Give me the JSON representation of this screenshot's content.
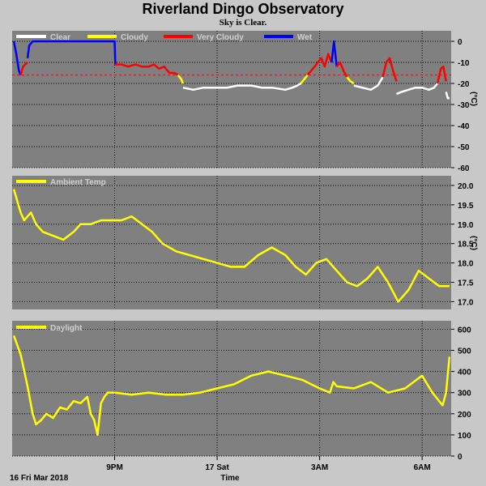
{
  "header": {
    "title": "Riverland Dingo Observatory",
    "subtitle": "Sky is Clear."
  },
  "colors": {
    "page_bg": "#c8c8c8",
    "panel_bg": "#808080",
    "grid": "#000000",
    "clear": "#ffffff",
    "cloudy": "#ffff00",
    "very_cloudy": "#ff0000",
    "wet": "#0000ff",
    "ambient": "#ffff00",
    "daylight": "#ffff00",
    "threshold": "#ff0000"
  },
  "x_axis": {
    "label": "Time",
    "date_label": "16 Fri Mar 2018",
    "range_hours": [
      18.0,
      30.85
    ],
    "ticks": [
      {
        "value": 21,
        "label": "9PM"
      },
      {
        "value": 24,
        "label": "17 Sat"
      },
      {
        "value": 27,
        "label": "3AM"
      },
      {
        "value": 30,
        "label": "6AM"
      }
    ]
  },
  "chart_data": [
    {
      "type": "line",
      "name": "sky-temperature",
      "ylabel": "(°C)",
      "ylim": [
        -60,
        5
      ],
      "yticks": [
        0,
        -10,
        -20,
        -30,
        -40,
        -50,
        -60
      ],
      "grid": true,
      "legend_position": "top-left",
      "legend": [
        "Clear",
        "Cloudy",
        "Very Cloudy",
        "Wet"
      ],
      "threshold": -16,
      "segments": [
        {
          "class": "wet",
          "x": [
            18.05,
            18.12,
            18.2,
            18.25
          ],
          "y": [
            0,
            -6,
            -14,
            -16
          ]
        },
        {
          "class": "very_cloudy",
          "x": [
            18.25,
            18.32,
            18.38,
            18.45
          ],
          "y": [
            -16,
            -12,
            -11,
            -10
          ]
        },
        {
          "class": "wet",
          "x": [
            18.45,
            18.5,
            18.6,
            19.0,
            19.6,
            20.2,
            20.9,
            21.0,
            21.02
          ],
          "y": [
            -8,
            -2,
            0,
            0,
            0,
            0,
            0,
            0,
            -11
          ]
        },
        {
          "class": "very_cloudy",
          "x": [
            21.02,
            21.2,
            21.4,
            21.6,
            21.8,
            22.0,
            22.15,
            22.3,
            22.45,
            22.6,
            22.75,
            22.85
          ],
          "y": [
            -11,
            -11,
            -12,
            -11,
            -12,
            -12,
            -11,
            -13,
            -12,
            -15,
            -15,
            -16
          ]
        },
        {
          "class": "cloudy",
          "x": [
            22.85,
            22.95,
            23.0
          ],
          "y": [
            -16,
            -18,
            -20
          ]
        },
        {
          "class": "clear",
          "x": [
            23.0,
            23.3,
            23.6,
            24.0,
            24.3,
            24.6,
            25.0,
            25.3,
            25.6,
            26.0,
            26.2,
            26.35,
            26.45
          ],
          "y": [
            -22,
            -23,
            -22,
            -22,
            -22,
            -21,
            -21,
            -22,
            -22,
            -23,
            -22,
            -21,
            -20
          ]
        },
        {
          "class": "cloudy",
          "x": [
            26.45,
            26.55,
            26.65
          ],
          "y": [
            -20,
            -18,
            -16
          ]
        },
        {
          "class": "very_cloudy",
          "x": [
            26.65,
            26.8,
            26.95,
            27.05,
            27.15,
            27.25,
            27.35
          ],
          "y": [
            -16,
            -13,
            -10,
            -8,
            -12,
            -6,
            -10
          ]
        },
        {
          "class": "wet",
          "x": [
            27.35,
            27.42,
            27.5
          ],
          "y": [
            -10,
            0,
            -12
          ]
        },
        {
          "class": "very_cloudy",
          "x": [
            27.5,
            27.6,
            27.7,
            27.8
          ],
          "y": [
            -12,
            -10,
            -14,
            -17
          ]
        },
        {
          "class": "cloudy",
          "x": [
            27.8,
            27.9,
            28.0
          ],
          "y": [
            -17,
            -19,
            -20
          ]
        },
        {
          "class": "clear",
          "x": [
            28.0,
            28.25,
            28.5,
            28.7,
            28.85
          ],
          "y": [
            -21,
            -22,
            -23,
            -21,
            -17
          ]
        },
        {
          "class": "very_cloudy",
          "x": [
            28.85,
            28.95,
            29.05,
            29.15,
            29.25
          ],
          "y": [
            -17,
            -10,
            -8,
            -14,
            -19
          ]
        },
        {
          "class": "clear",
          "x": [
            29.25,
            29.4,
            29.6,
            29.8,
            30.0,
            30.2,
            30.35,
            30.45
          ],
          "y": [
            -25,
            -24,
            -23,
            -22,
            -22,
            -23,
            -22,
            -20
          ]
        },
        {
          "class": "very_cloudy",
          "x": [
            30.45,
            30.55,
            30.62,
            30.7
          ],
          "y": [
            -20,
            -13,
            -12,
            -19
          ]
        },
        {
          "class": "clear",
          "x": [
            30.7,
            30.75,
            30.8
          ],
          "y": [
            -24,
            -27,
            -27
          ]
        }
      ]
    },
    {
      "type": "line",
      "name": "ambient-temperature",
      "ylabel": "(°C)",
      "ylim": [
        16.8,
        20.25
      ],
      "yticks": [
        20.0,
        19.5,
        19.0,
        18.5,
        18.0,
        17.5,
        17.0
      ],
      "grid": true,
      "legend_position": "top-left",
      "legend": [
        "Ambient Temp"
      ],
      "x": [
        18.05,
        18.15,
        18.25,
        18.35,
        18.45,
        18.55,
        18.7,
        18.9,
        19.2,
        19.5,
        19.8,
        20.0,
        20.3,
        20.6,
        20.9,
        21.2,
        21.5,
        21.8,
        22.1,
        22.4,
        22.8,
        23.2,
        23.6,
        24.0,
        24.4,
        24.8,
        25.2,
        25.6,
        26.0,
        26.3,
        26.6,
        26.9,
        27.2,
        27.5,
        27.8,
        28.1,
        28.4,
        28.7,
        29.0,
        29.3,
        29.6,
        29.9,
        30.2,
        30.5,
        30.8
      ],
      "y": [
        19.9,
        19.6,
        19.3,
        19.1,
        19.2,
        19.3,
        19.0,
        18.8,
        18.7,
        18.6,
        18.8,
        19.0,
        19.0,
        19.1,
        19.1,
        19.1,
        19.2,
        19.0,
        18.8,
        18.5,
        18.3,
        18.2,
        18.1,
        18.0,
        17.9,
        17.9,
        18.2,
        18.4,
        18.2,
        17.9,
        17.7,
        18.0,
        18.1,
        17.8,
        17.5,
        17.4,
        17.6,
        17.9,
        17.5,
        17.0,
        17.3,
        17.8,
        17.6,
        17.4,
        17.4
      ]
    },
    {
      "type": "line",
      "name": "daylight",
      "ylim": [
        0,
        640
      ],
      "yticks": [
        600,
        500,
        400,
        300,
        200,
        100,
        0
      ],
      "grid": true,
      "legend_position": "top-left",
      "legend": [
        "Daylight"
      ],
      "x": [
        18.05,
        18.25,
        18.45,
        18.6,
        18.7,
        18.85,
        19.0,
        19.2,
        19.4,
        19.6,
        19.8,
        20.0,
        20.2,
        20.3,
        20.4,
        20.5,
        20.6,
        20.7,
        20.8,
        21.0,
        21.5,
        22.0,
        22.5,
        23.0,
        23.5,
        24.0,
        24.5,
        25.0,
        25.5,
        26.0,
        26.5,
        27.0,
        27.3,
        27.4,
        27.5,
        28.0,
        28.5,
        29.0,
        29.5,
        30.0,
        30.3,
        30.5,
        30.6,
        30.7,
        30.8
      ],
      "y": [
        570,
        480,
        330,
        200,
        150,
        170,
        200,
        180,
        230,
        220,
        260,
        250,
        280,
        200,
        170,
        100,
        250,
        280,
        300,
        300,
        290,
        300,
        290,
        290,
        300,
        320,
        340,
        380,
        400,
        380,
        360,
        320,
        300,
        350,
        330,
        320,
        350,
        300,
        320,
        380,
        300,
        260,
        240,
        300,
        470
      ]
    }
  ]
}
